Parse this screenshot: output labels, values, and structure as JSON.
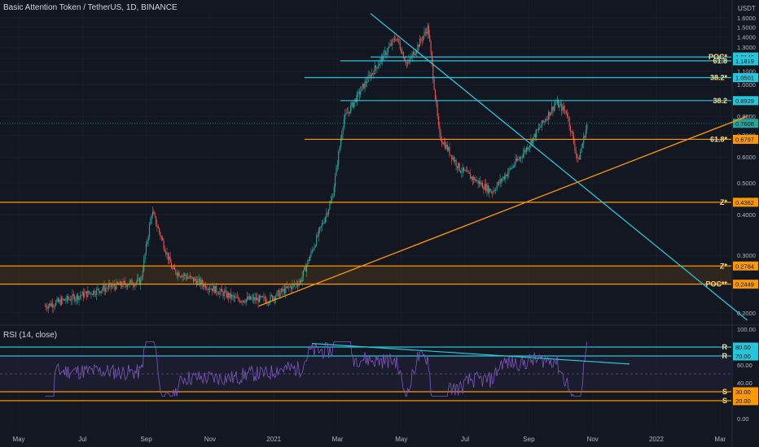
{
  "header": {
    "title": "Basic Attention Token / TetherUS, 1D, BINANCE",
    "unit": "USDT"
  },
  "rsi_header": {
    "title": "RSI (14, close)"
  },
  "colors": {
    "bg": "#131722",
    "up": "#26a69a",
    "down": "#ef5350",
    "candle": "#7a2e2e",
    "cyan": "#26c6da",
    "orange": "#ff9800",
    "rsi": "#7e57c2",
    "grid": "#1e2230",
    "text": "#b2b5be",
    "label_yellow": "#ffe082"
  },
  "chart_data": [
    {
      "type": "line",
      "title": "Basic Attention Token / TetherUS, 1D, BINANCE",
      "scale": "log",
      "ylabel": "USDT",
      "ylim": [
        0.19,
        1.7
      ],
      "x_ticks": [
        "May",
        "Jul",
        "Sep",
        "Nov",
        "2021",
        "Mar",
        "May",
        "Jul",
        "Sep",
        "Nov",
        "2022",
        "Mar"
      ],
      "y_ticks": [
        "1.6000",
        "1.5000",
        "1.4000",
        "1.3000",
        "1.2000",
        "1.1000",
        "1.0000",
        "0.9000",
        "0.8000",
        "0.7000",
        "0.6000",
        "0.5000",
        "0.4000",
        "0.3000",
        "0.2000"
      ],
      "series": [
        {
          "x": [
            "May 2020",
            "Jul 2020",
            "Aug 2020",
            "Aug 2020",
            "Sep 2020",
            "Nov 2020",
            "Dec 2020",
            "Jan 2021",
            "Feb 2021",
            "Feb 2021",
            "Mar 2021",
            "Apr 2021",
            "Apr 2021",
            "May 2021",
            "May 2021",
            "Jun 2021",
            "Jul 2021",
            "Aug 2021",
            "Sep 2021",
            "Sep 2021",
            "Sep 2021",
            "Oct 2021"
          ],
          "values": [
            0.21,
            0.24,
            0.25,
            0.41,
            0.27,
            0.22,
            0.22,
            0.25,
            0.45,
            0.78,
            1.0,
            1.4,
            1.15,
            1.5,
            0.7,
            0.55,
            0.47,
            0.62,
            0.88,
            0.82,
            0.58,
            0.77
          ]
        }
      ],
      "levels": [
        {
          "label": "POC*",
          "value": 1.2146,
          "value_label": "1.2146",
          "color": "#26c6da"
        },
        {
          "label": "61.8",
          "value": 1.1819,
          "value_label": "1.1819",
          "color": "#26c6da"
        },
        {
          "label": "38.2*",
          "value": 1.0501,
          "value_label": "1.0501",
          "color": "#26c6da"
        },
        {
          "label": "38.2",
          "value": 0.8929,
          "value_label": "0.8929",
          "color": "#26c6da"
        },
        {
          "label": "61.8*",
          "value": 0.6797,
          "value_label": "0.6797",
          "color": "#ff9800"
        },
        {
          "label": "Z*",
          "value": 0.4362,
          "value_label": "0.4362",
          "color": "#ff9800"
        },
        {
          "label": "Z*",
          "value": 0.2784,
          "value_label": "0.2784",
          "color": "#ff9800"
        },
        {
          "label": "POC**",
          "value": 0.2449,
          "value_label": "0.2449",
          "color": "#ff9800"
        }
      ],
      "last_price": {
        "value": 0.7608,
        "label": "0.7608"
      },
      "trendlines": [
        {
          "name": "descending-resistance",
          "from": {
            "x": "Apr 2021",
            "y": 1.65
          },
          "to": {
            "x": "Mar 2022",
            "y": 0.19
          }
        },
        {
          "name": "ascending-support",
          "from": {
            "x": "Dec 2020",
            "y": 0.21
          },
          "to": {
            "x": "Mar 2022",
            "y": 0.8
          }
        }
      ]
    },
    {
      "type": "line",
      "title": "RSI (14, close)",
      "ylim": [
        0,
        100
      ],
      "y_ticks": [
        "100.00",
        "60.00",
        "40.00",
        "0.00"
      ],
      "levels": [
        {
          "label": "R",
          "value": 80,
          "value_label": "80.00",
          "color": "#26c6da"
        },
        {
          "label": "R",
          "value": 70,
          "value_label": "70.00",
          "color": "#26c6da"
        },
        {
          "label": "S",
          "value": 30,
          "value_label": "30.00",
          "color": "#ff9800"
        },
        {
          "label": "S",
          "value": 20,
          "value_label": "20.00",
          "color": "#ff9800"
        }
      ],
      "trendline": {
        "from": {
          "x": "Feb 2021",
          "y": 84
        },
        "to": {
          "x": "Dec 2021",
          "y": 61
        }
      }
    }
  ]
}
